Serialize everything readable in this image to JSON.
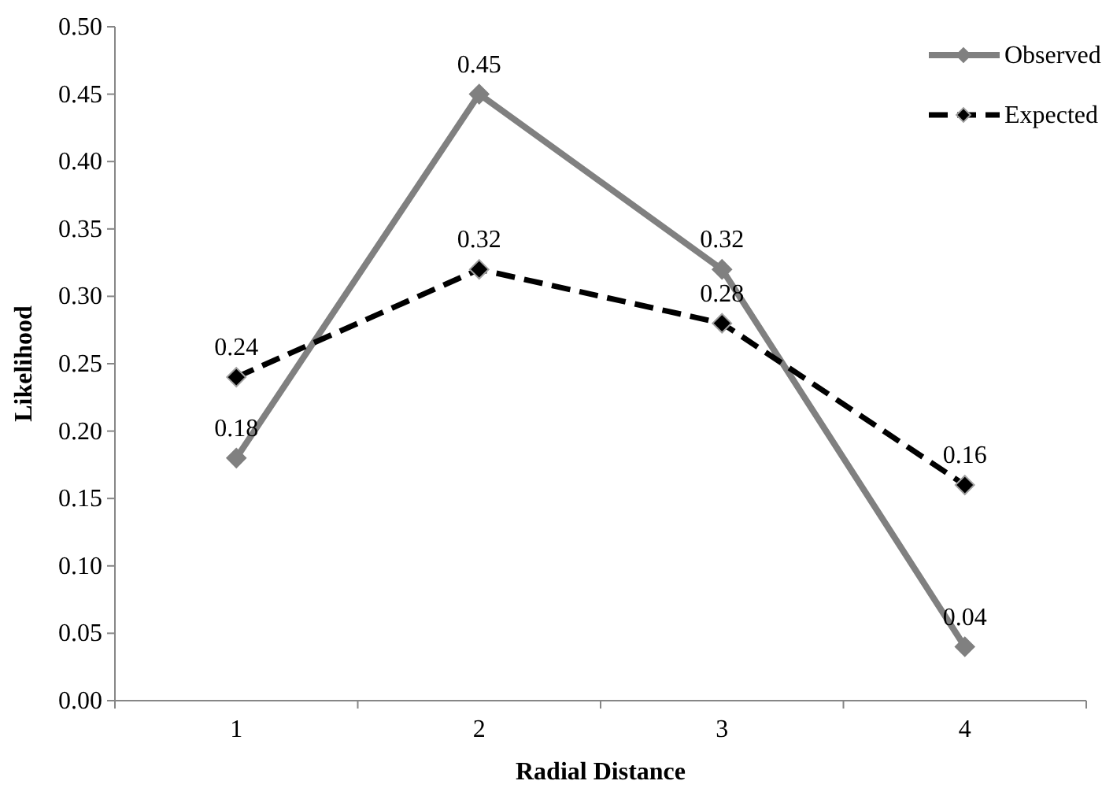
{
  "chart_data": {
    "type": "line",
    "xlabel": "Radial Distance",
    "ylabel": "Likelihood",
    "categories": [
      "1",
      "2",
      "3",
      "4"
    ],
    "series": [
      {
        "name": "Observed",
        "color": "#808080",
        "values": [
          0.18,
          0.45,
          0.32,
          0.04
        ],
        "marker": "diamond",
        "line_style": "solid"
      },
      {
        "name": "Expected",
        "color": "#000000",
        "values": [
          0.24,
          0.32,
          0.28,
          0.16
        ],
        "marker": "diamond",
        "line_style": "dashed"
      }
    ],
    "ylim": [
      0,
      0.5
    ],
    "yticks": [
      {
        "value": 0,
        "label": "0.00"
      },
      {
        "value": 0.05,
        "label": "0.05"
      },
      {
        "value": 0.1,
        "label": "0.10"
      },
      {
        "value": 0.15,
        "label": "0.15"
      },
      {
        "value": 0.2,
        "label": "0.20"
      },
      {
        "value": 0.25,
        "label": "0.25"
      },
      {
        "value": 0.3,
        "label": "0.30"
      },
      {
        "value": 0.35,
        "label": "0.35"
      },
      {
        "value": 0.4,
        "label": "0.40"
      },
      {
        "value": 0.45,
        "label": "0.45"
      },
      {
        "value": 0.5,
        "label": "0.50"
      }
    ],
    "grid": false,
    "legend": "top right",
    "data_labels": true
  }
}
